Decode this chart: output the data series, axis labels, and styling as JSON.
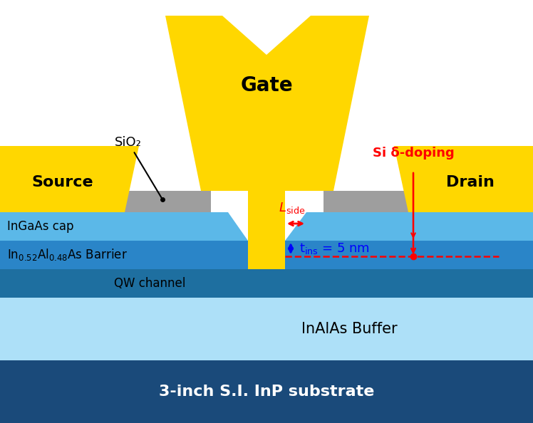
{
  "bg_color": "#ffffff",
  "gate_color": "#FFD700",
  "sio2_color": "#9E9E9E",
  "ingaas_cap_color": "#5BB8E8",
  "barrier_color": "#2A85C8",
  "qw_color": "#1E6FA0",
  "buffer_color": "#ADE0F8",
  "substrate_color": "#1A4A7A",
  "source_drain_color": "#FFD700",
  "white_color": "#FFFFFF",
  "title": "Gate",
  "source_label": "Source",
  "drain_label": "Drain",
  "sio2_label": "SiO₂",
  "si_doping_label": "Si δ-doping",
  "ingaas_cap_label": "InGaAs cap",
  "barrier_label": "In$_{0.52}$Al$_{0.48}$As Barrier",
  "qw_label": "QW channel",
  "buffer_label": "InAlAs Buffer",
  "substrate_label": "3-inch S.I. InP substrate",
  "lside_label": "L$_{\\mathrm{side}}$",
  "tins_label": "t$_{\\mathrm{ins}}$ = 5 nm"
}
